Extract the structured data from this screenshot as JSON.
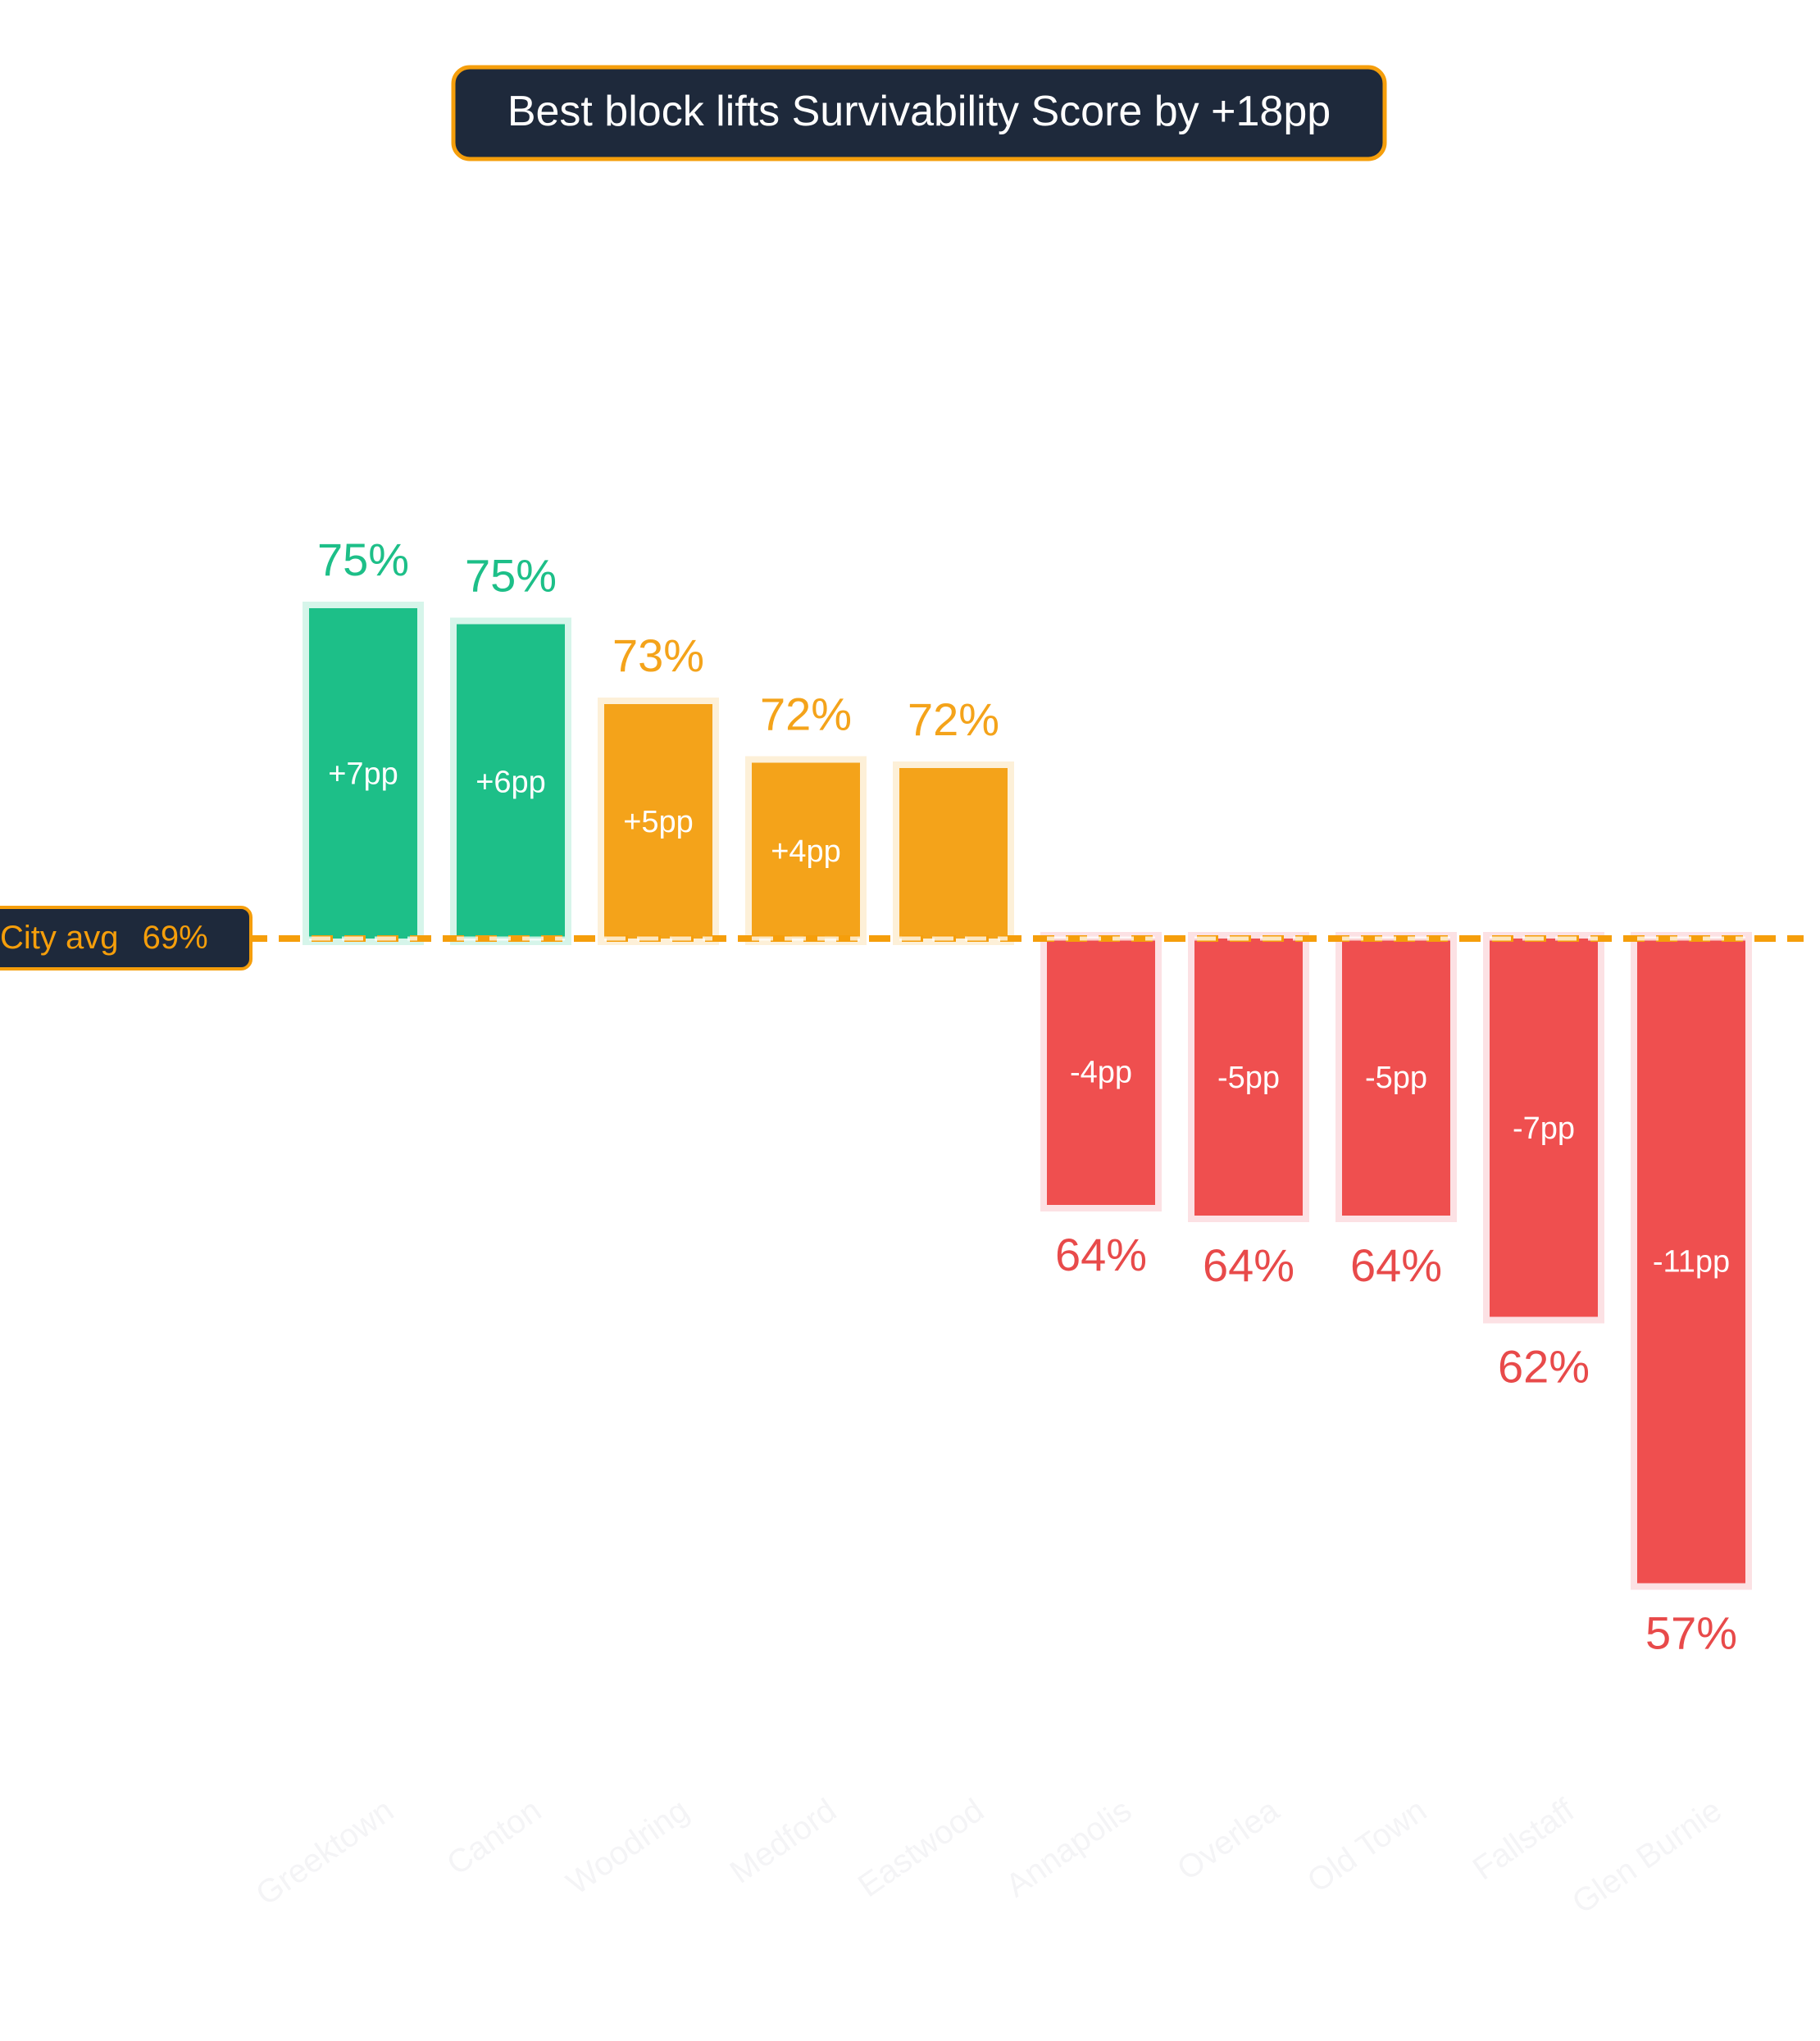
{
  "chart_data": {
    "type": "bar",
    "title": "Best block lifts Survivability Score by +18pp",
    "metric": "Survivability Score",
    "reference": {
      "label": "City avg",
      "value_label": "69%",
      "value": 69.0
    },
    "categories": [
      "Greektown",
      "Canton",
      "Woodring",
      "Medford",
      "Eastwood",
      "Annapolis",
      "Overlea",
      "Old Town",
      "Fallstaff",
      "Glen Burnie"
    ],
    "values": [
      75.2,
      74.9,
      73.4,
      72.3,
      72.2,
      64.0,
      63.8,
      63.8,
      61.9,
      56.9
    ],
    "value_labels": [
      "75%",
      "75%",
      "73%",
      "72%",
      "72%",
      "64%",
      "64%",
      "64%",
      "62%",
      "57%"
    ],
    "delta_labels": [
      "+7pp",
      "+6pp",
      "+5pp",
      "+4pp",
      "",
      "-4pp",
      "-5pp",
      "-5pp",
      "-7pp",
      "-11pp"
    ],
    "colors": [
      "#1dbf88",
      "#1dbf88",
      "#f4a31a",
      "#f4a31a",
      "#f4a31a",
      "#ef4f4f",
      "#ef4f4f",
      "#ef4f4f",
      "#ef4f4f",
      "#ef4f4f"
    ],
    "halo_colors": [
      "#d6f5ea",
      "#d6f5ea",
      "#fdf0d8",
      "#fdf0d8",
      "#fdf0d8",
      "#fce1e4",
      "#fce1e4",
      "#fce1e4",
      "#fce1e4",
      "#fce1e4"
    ],
    "value_label_colors": [
      "#1dbf88",
      "#1dbf88",
      "#f4a31a",
      "#f4a31a",
      "#f4a31a",
      "#e84a4a",
      "#e84a4a",
      "#e84a4a",
      "#e84a4a",
      "#e84a4a"
    ],
    "reference_color": "#f59e0b",
    "grid": false,
    "legend": "none"
  }
}
